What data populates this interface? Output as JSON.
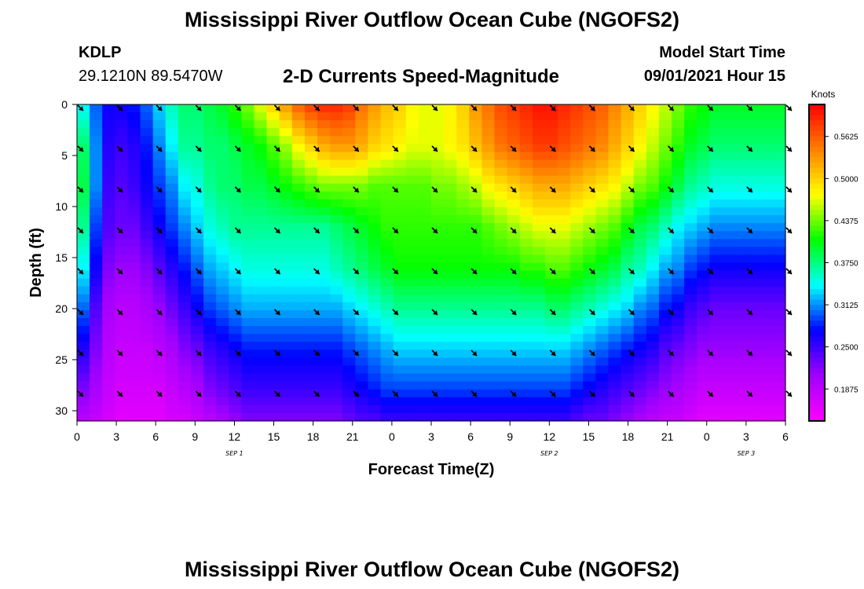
{
  "header": {
    "title": "Mississippi River Outflow Ocean Cube (NGOFS2)",
    "station_id": "KDLP",
    "station_coords": "29.1210N  89.5470W",
    "plot_title": "2-D Currents Speed-Magnitude",
    "model_start_label": "Model Start Time",
    "model_start_value": "09/01/2021 Hour 15"
  },
  "footer": {
    "title": "Mississippi River Outflow Ocean Cube (NGOFS2)"
  },
  "colors": {
    "scale": [
      "#ff00ff",
      "#a000ff",
      "#0000ff",
      "#00ffff",
      "#00ff00",
      "#ffff00",
      "#ff8000",
      "#ff0000"
    ],
    "arrow": "#000000"
  },
  "chart_data": {
    "type": "heatmap",
    "xlabel": "Forecast Time(Z)",
    "ylabel": "Depth (ft)",
    "x_tick_labels": [
      "0",
      "3",
      "6",
      "9",
      "12",
      "15",
      "18",
      "21",
      "0",
      "3",
      "6",
      "9",
      "12",
      "15",
      "18",
      "21",
      "0",
      "3",
      "6"
    ],
    "date_labels": [
      {
        "at_index": 4,
        "text": "SEP 1"
      },
      {
        "at_index": 12,
        "text": "SEP 2"
      },
      {
        "at_index": 17,
        "text": "SEP 3"
      }
    ],
    "y_ticks": [
      0,
      5,
      10,
      15,
      20,
      25,
      30
    ],
    "ylim": [
      0,
      31
    ],
    "y_inverted": true,
    "colorbar": {
      "unit": "Knots",
      "ticks": [
        "0.5625",
        "0.5000",
        "0.4375",
        "0.3750",
        "0.3125",
        "0.2500",
        "0.1875"
      ],
      "tick_values": [
        0.5625,
        0.5,
        0.4375,
        0.375,
        0.3125,
        0.25,
        0.1875
      ],
      "range": [
        0.14,
        0.61
      ]
    },
    "vector_depths": [
      0,
      4,
      8,
      12,
      16,
      20,
      24,
      28
    ],
    "depths": [
      0,
      4,
      8,
      12,
      16,
      20,
      24,
      28,
      31
    ],
    "speed_grid": [
      [
        0.34,
        0.3,
        0.27,
        0.27,
        0.28,
        0.3,
        0.33,
        0.36,
        0.38,
        0.38,
        0.39,
        0.4,
        0.42,
        0.44,
        0.47,
        0.5,
        0.53,
        0.56,
        0.58,
        0.59,
        0.59,
        0.58,
        0.55,
        0.53,
        0.51,
        0.5,
        0.48,
        0.47,
        0.47,
        0.48,
        0.5,
        0.53,
        0.55,
        0.57,
        0.58,
        0.59,
        0.6,
        0.6,
        0.59,
        0.58,
        0.57,
        0.56,
        0.54,
        0.52,
        0.5,
        0.48,
        0.46,
        0.44,
        0.42,
        0.41,
        0.4,
        0.4,
        0.4,
        0.4,
        0.4,
        0.4
      ],
      [
        0.38,
        0.31,
        0.26,
        0.25,
        0.26,
        0.28,
        0.31,
        0.34,
        0.37,
        0.37,
        0.38,
        0.38,
        0.39,
        0.4,
        0.41,
        0.43,
        0.45,
        0.48,
        0.5,
        0.52,
        0.53,
        0.53,
        0.52,
        0.5,
        0.49,
        0.48,
        0.47,
        0.47,
        0.47,
        0.48,
        0.49,
        0.51,
        0.53,
        0.55,
        0.56,
        0.57,
        0.58,
        0.58,
        0.57,
        0.56,
        0.55,
        0.54,
        0.52,
        0.5,
        0.48,
        0.46,
        0.44,
        0.42,
        0.4,
        0.39,
        0.38,
        0.38,
        0.38,
        0.38,
        0.38,
        0.38
      ],
      [
        0.39,
        0.31,
        0.25,
        0.24,
        0.25,
        0.27,
        0.29,
        0.31,
        0.34,
        0.35,
        0.37,
        0.38,
        0.38,
        0.39,
        0.39,
        0.4,
        0.41,
        0.42,
        0.43,
        0.44,
        0.44,
        0.44,
        0.44,
        0.43,
        0.43,
        0.43,
        0.43,
        0.43,
        0.44,
        0.44,
        0.45,
        0.46,
        0.48,
        0.49,
        0.5,
        0.51,
        0.52,
        0.52,
        0.52,
        0.51,
        0.5,
        0.49,
        0.48,
        0.46,
        0.44,
        0.43,
        0.41,
        0.39,
        0.37,
        0.36,
        0.35,
        0.35,
        0.35,
        0.35,
        0.35,
        0.35
      ],
      [
        0.37,
        0.29,
        0.24,
        0.23,
        0.23,
        0.25,
        0.27,
        0.29,
        0.31,
        0.33,
        0.35,
        0.36,
        0.37,
        0.37,
        0.37,
        0.37,
        0.37,
        0.37,
        0.37,
        0.37,
        0.38,
        0.39,
        0.4,
        0.41,
        0.42,
        0.42,
        0.42,
        0.42,
        0.42,
        0.42,
        0.42,
        0.42,
        0.43,
        0.44,
        0.45,
        0.46,
        0.47,
        0.47,
        0.47,
        0.46,
        0.45,
        0.44,
        0.43,
        0.41,
        0.39,
        0.38,
        0.36,
        0.34,
        0.33,
        0.32,
        0.31,
        0.31,
        0.31,
        0.31,
        0.31,
        0.31
      ],
      [
        0.34,
        0.27,
        0.22,
        0.21,
        0.21,
        0.22,
        0.24,
        0.26,
        0.28,
        0.3,
        0.32,
        0.33,
        0.34,
        0.35,
        0.35,
        0.35,
        0.35,
        0.35,
        0.35,
        0.35,
        0.36,
        0.37,
        0.38,
        0.39,
        0.4,
        0.41,
        0.41,
        0.41,
        0.41,
        0.41,
        0.41,
        0.41,
        0.41,
        0.41,
        0.41,
        0.42,
        0.42,
        0.43,
        0.43,
        0.42,
        0.41,
        0.4,
        0.39,
        0.37,
        0.36,
        0.34,
        0.32,
        0.31,
        0.29,
        0.28,
        0.27,
        0.27,
        0.27,
        0.27,
        0.27,
        0.27
      ],
      [
        0.3,
        0.24,
        0.2,
        0.19,
        0.19,
        0.2,
        0.21,
        0.23,
        0.25,
        0.27,
        0.29,
        0.3,
        0.31,
        0.32,
        0.32,
        0.32,
        0.32,
        0.32,
        0.32,
        0.32,
        0.32,
        0.33,
        0.34,
        0.35,
        0.36,
        0.37,
        0.37,
        0.37,
        0.37,
        0.37,
        0.37,
        0.37,
        0.37,
        0.37,
        0.37,
        0.37,
        0.37,
        0.38,
        0.38,
        0.37,
        0.36,
        0.35,
        0.34,
        0.33,
        0.31,
        0.3,
        0.28,
        0.27,
        0.25,
        0.24,
        0.23,
        0.23,
        0.23,
        0.23,
        0.23,
        0.23
      ],
      [
        0.26,
        0.22,
        0.19,
        0.18,
        0.18,
        0.18,
        0.19,
        0.2,
        0.22,
        0.23,
        0.25,
        0.26,
        0.27,
        0.28,
        0.28,
        0.28,
        0.28,
        0.28,
        0.28,
        0.28,
        0.28,
        0.29,
        0.3,
        0.31,
        0.32,
        0.33,
        0.33,
        0.33,
        0.33,
        0.33,
        0.33,
        0.33,
        0.33,
        0.33,
        0.33,
        0.33,
        0.33,
        0.33,
        0.33,
        0.32,
        0.31,
        0.3,
        0.29,
        0.28,
        0.27,
        0.26,
        0.24,
        0.23,
        0.22,
        0.21,
        0.21,
        0.21,
        0.21,
        0.21,
        0.21,
        0.21
      ],
      [
        0.22,
        0.2,
        0.18,
        0.17,
        0.17,
        0.17,
        0.17,
        0.18,
        0.19,
        0.2,
        0.22,
        0.23,
        0.24,
        0.25,
        0.25,
        0.25,
        0.25,
        0.25,
        0.25,
        0.25,
        0.25,
        0.26,
        0.27,
        0.28,
        0.29,
        0.29,
        0.29,
        0.29,
        0.29,
        0.29,
        0.29,
        0.29,
        0.29,
        0.29,
        0.29,
        0.29,
        0.29,
        0.29,
        0.29,
        0.28,
        0.27,
        0.26,
        0.25,
        0.24,
        0.23,
        0.22,
        0.21,
        0.2,
        0.19,
        0.18,
        0.18,
        0.18,
        0.18,
        0.18,
        0.18,
        0.18
      ],
      [
        0.19,
        0.18,
        0.17,
        0.16,
        0.16,
        0.16,
        0.16,
        0.17,
        0.17,
        0.18,
        0.19,
        0.2,
        0.21,
        0.22,
        0.22,
        0.22,
        0.22,
        0.22,
        0.22,
        0.22,
        0.22,
        0.23,
        0.24,
        0.24,
        0.25,
        0.25,
        0.25,
        0.25,
        0.25,
        0.25,
        0.25,
        0.25,
        0.25,
        0.25,
        0.25,
        0.25,
        0.25,
        0.25,
        0.25,
        0.24,
        0.23,
        0.23,
        0.22,
        0.21,
        0.2,
        0.19,
        0.18,
        0.18,
        0.17,
        0.16,
        0.16,
        0.16,
        0.16,
        0.16,
        0.16,
        0.16
      ]
    ]
  }
}
